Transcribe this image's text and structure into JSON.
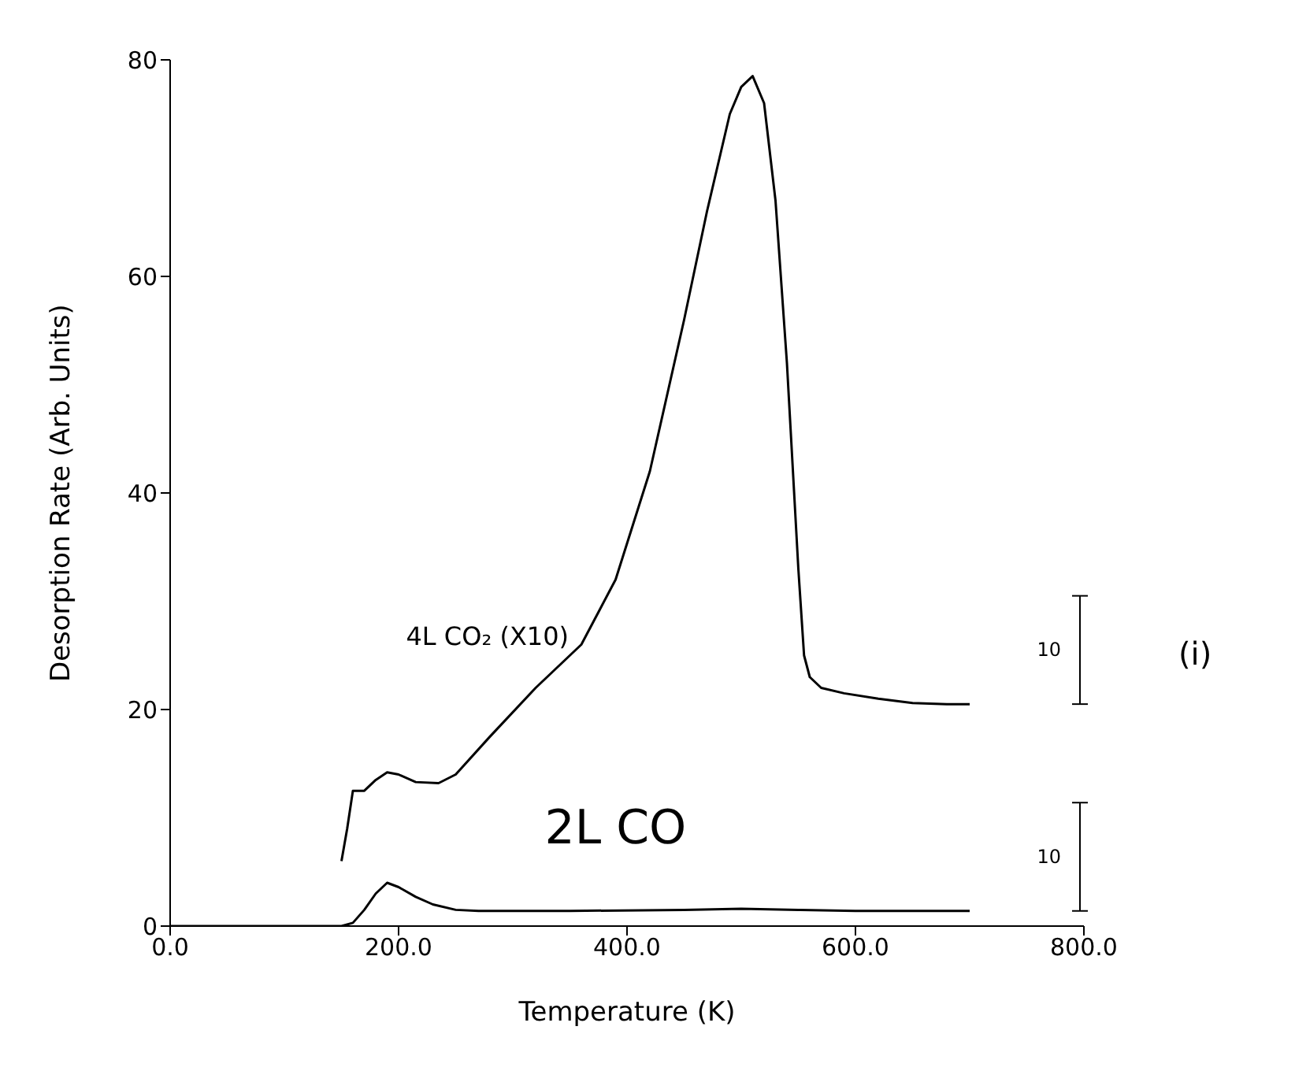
{
  "chart_data": {
    "type": "line",
    "xlabel": "Temperature (K)",
    "ylabel": "Desorption Rate (Arb. Units)",
    "xlim": [
      0,
      800
    ],
    "ylim": [
      0,
      80
    ],
    "xticks": [
      {
        "value": 0,
        "label": "0.0"
      },
      {
        "value": 200,
        "label": "200.0"
      },
      {
        "value": 400,
        "label": "400.0"
      },
      {
        "value": 600,
        "label": "600.0"
      },
      {
        "value": 800,
        "label": "800.0"
      }
    ],
    "yticks": [
      0,
      20,
      40,
      60,
      80
    ],
    "marker": "none",
    "line_style": "solid",
    "series": [
      {
        "name": "4L CO₂ (X10)",
        "color": "#000000",
        "x": [
          150,
          155,
          160,
          170,
          180,
          190,
          200,
          215,
          235,
          250,
          280,
          320,
          360,
          390,
          420,
          450,
          470,
          490,
          500,
          510,
          520,
          530,
          540,
          550,
          555,
          560,
          570,
          590,
          620,
          650,
          680,
          700
        ],
        "values": [
          6,
          9,
          12.5,
          12.5,
          13.5,
          14.2,
          14,
          13.3,
          13.2,
          14,
          17.5,
          22,
          26,
          32,
          42,
          56,
          66,
          75,
          77.5,
          78.5,
          76,
          67,
          52,
          33,
          25,
          23,
          22,
          21.5,
          21,
          20.6,
          20.5,
          20.5
        ]
      },
      {
        "name": "2L CO",
        "color": "#000000",
        "x": [
          0,
          150,
          160,
          170,
          180,
          190,
          200,
          215,
          230,
          250,
          270,
          350,
          450,
          500,
          550,
          600,
          700
        ],
        "values": [
          0,
          0,
          0.3,
          1.5,
          3,
          4,
          3.6,
          2.7,
          2,
          1.5,
          1.4,
          1.4,
          1.5,
          1.6,
          1.5,
          1.4,
          1.4
        ]
      }
    ],
    "annotations": [
      "10",
      "10",
      "(i)"
    ]
  }
}
